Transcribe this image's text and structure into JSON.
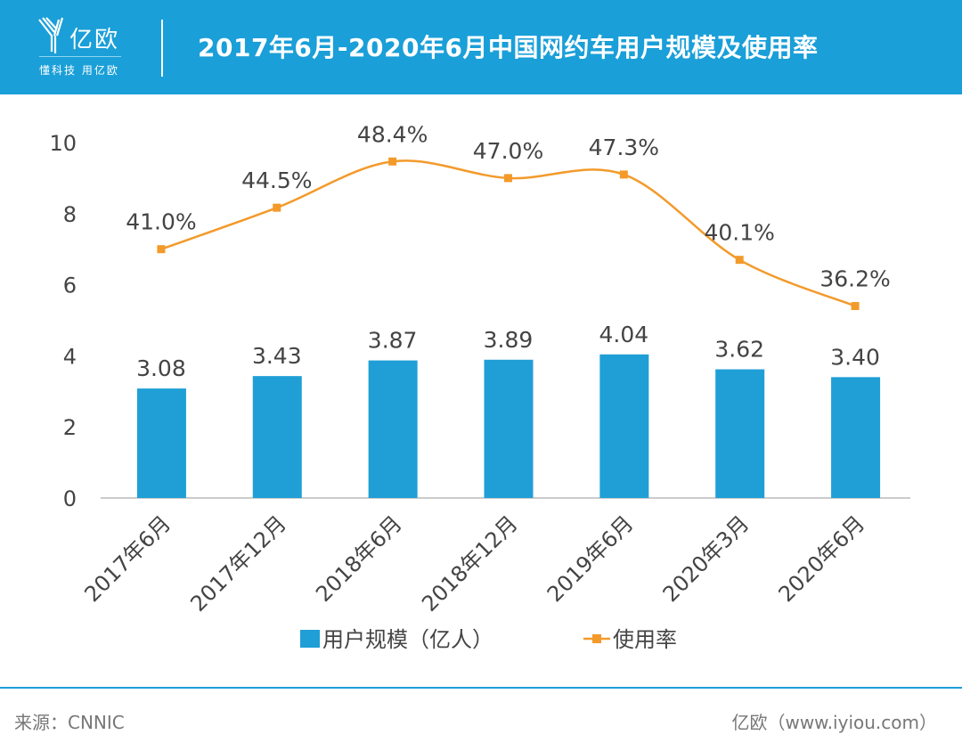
{
  "header": {
    "logo_name": "亿欧",
    "logo_slogan": "懂科技 用亿欧",
    "title": "2017年6月-2020年6月中国网约车用户规模及使用率"
  },
  "chart_data": {
    "type": "bar+line",
    "title": "2017年6月-2020年6月中国网约车用户规模及使用率",
    "categories": [
      "2017年6月",
      "2017年12月",
      "2018年6月",
      "2018年12月",
      "2019年6月",
      "2020年3月",
      "2020年6月"
    ],
    "series": [
      {
        "name": "用户规模（亿人）",
        "type": "bar",
        "axis": "left",
        "values": [
          3.08,
          3.43,
          3.87,
          3.89,
          4.04,
          3.62,
          3.4
        ],
        "labels": [
          "3.08",
          "3.43",
          "3.87",
          "3.89",
          "4.04",
          "3.62",
          "3.40"
        ],
        "color": "#1f9fd6"
      },
      {
        "name": "使用率",
        "type": "line",
        "axis": "right-hidden",
        "values": [
          41.0,
          44.5,
          48.4,
          47.0,
          47.3,
          40.1,
          36.2
        ],
        "labels": [
          "41.0%",
          "44.5%",
          "48.4%",
          "47.0%",
          "47.3%",
          "40.1%",
          "36.2%"
        ],
        "color": "#f39a2b"
      }
    ],
    "ylim": [
      0,
      10
    ],
    "yticks": [
      "0",
      "2",
      "4",
      "6",
      "8",
      "10"
    ],
    "y2lim": [
      20,
      50
    ],
    "legend": "bottom",
    "grid": false
  },
  "footer": {
    "source": "来源：CNNIC",
    "site": "亿欧（www.iyiou.com）"
  }
}
